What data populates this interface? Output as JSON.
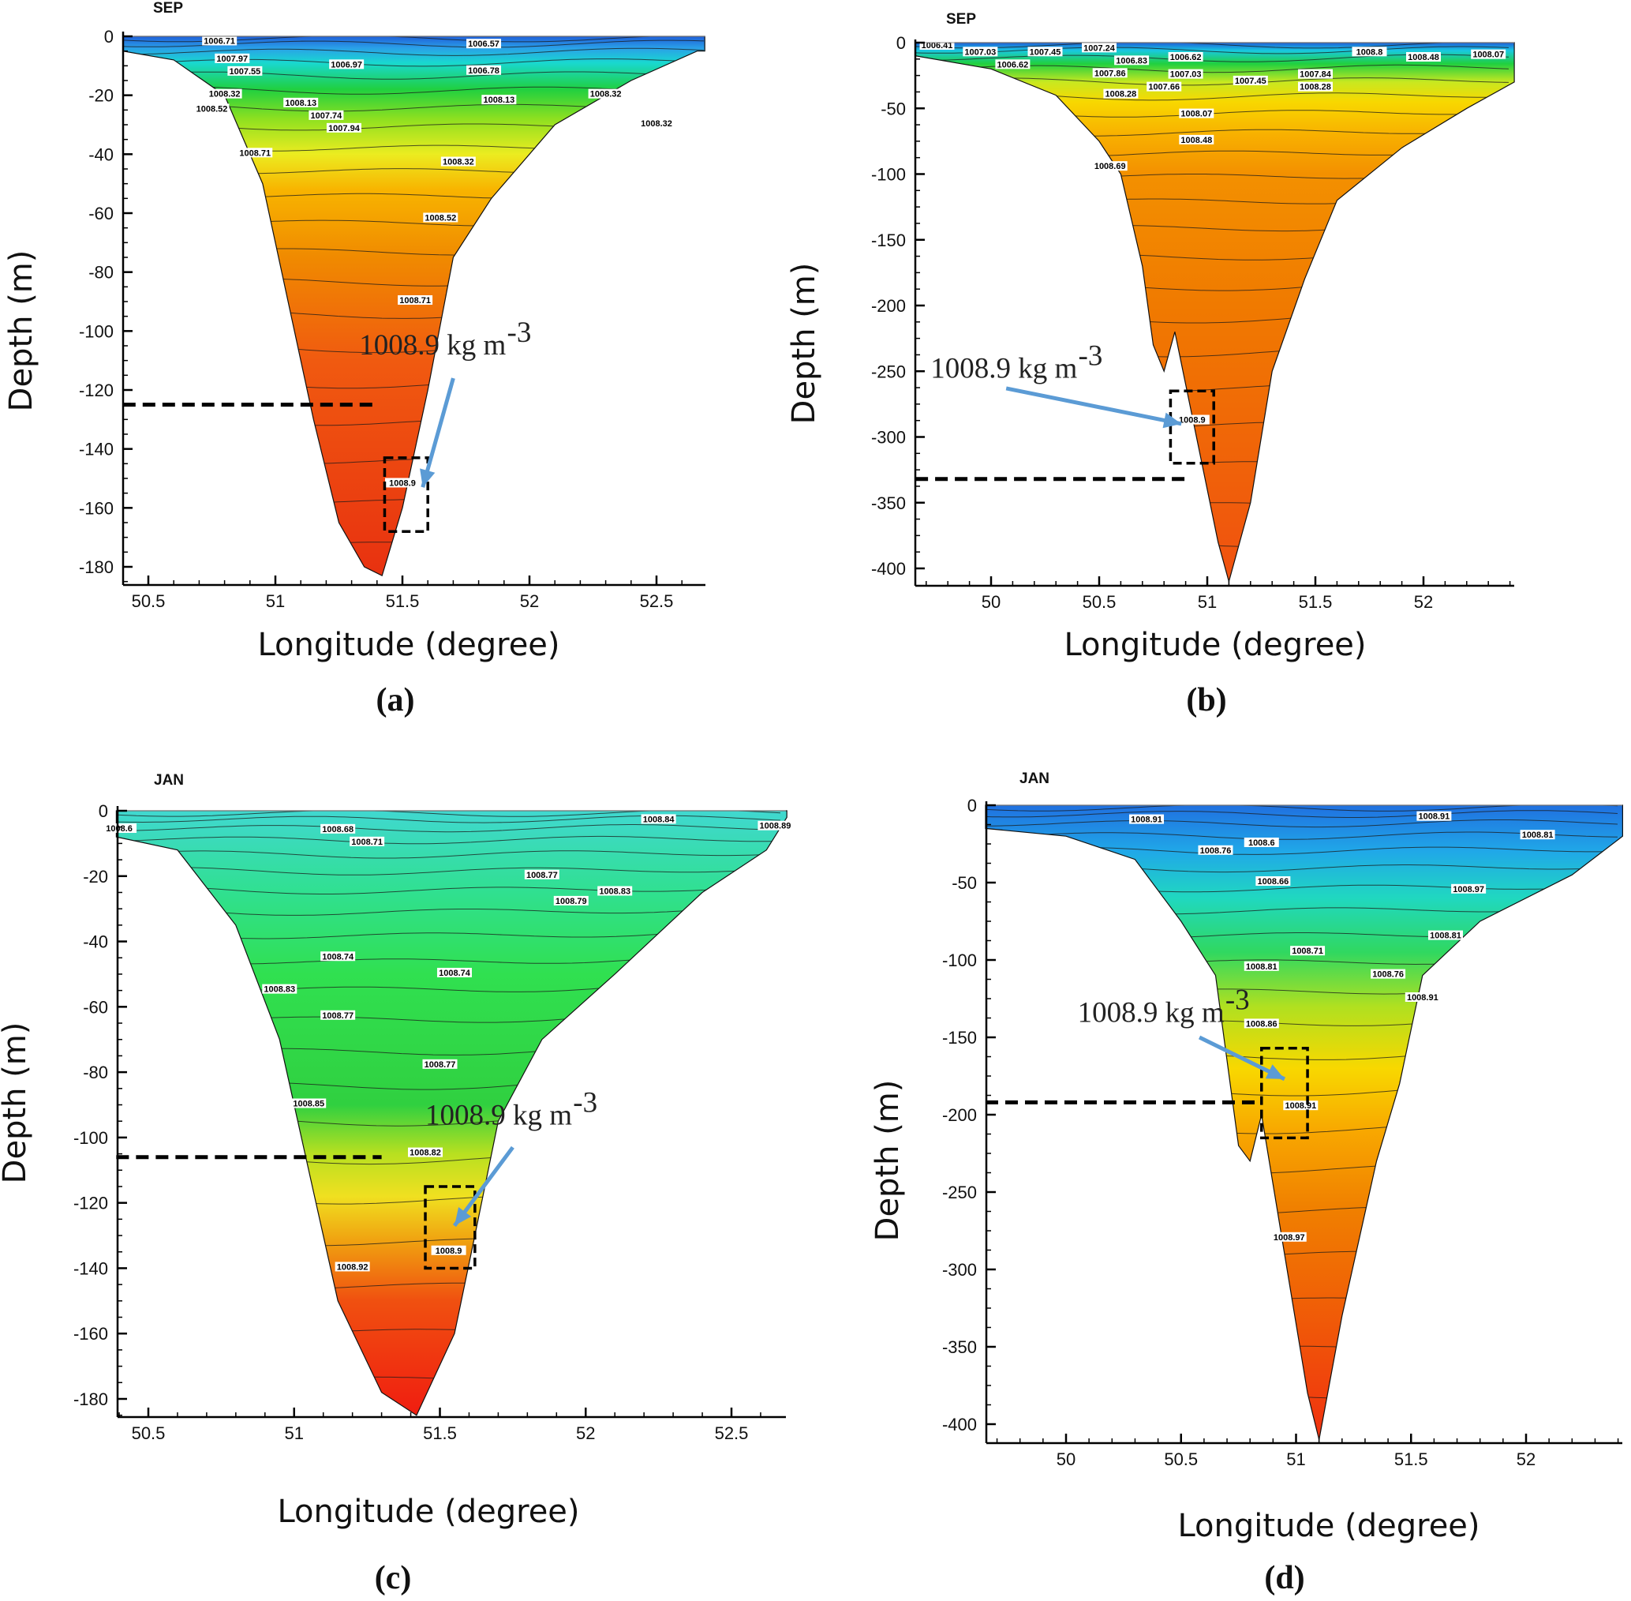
{
  "chart_data": [
    {
      "panel": "(a)",
      "type": "contour",
      "title": "SEP",
      "xlabel": "Longitude (degree)",
      "ylabel": "Depth (m)",
      "xlim": [
        50.4,
        52.69
      ],
      "ylim": [
        -185,
        0
      ],
      "xticks": [
        50.5,
        51,
        51.5,
        52,
        52.5
      ],
      "xtick_labels": [
        "50.5",
        "51",
        "51.5",
        "52",
        "52.5"
      ],
      "yticks": [
        0,
        -20,
        -40,
        -60,
        -80,
        -100,
        -120,
        -140,
        -160,
        -180
      ],
      "ytick_labels": [
        "0",
        "-20",
        "-40",
        "-60",
        "-80",
        "-100",
        "-120",
        "-140",
        "-160",
        "-180"
      ],
      "color_scale": [
        [
          0,
          "#1f5fd8"
        ],
        [
          -4,
          "#2aa0e8"
        ],
        [
          -9,
          "#19d8d0"
        ],
        [
          -18,
          "#20d040"
        ],
        [
          -28,
          "#8ee020"
        ],
        [
          -40,
          "#ecec20"
        ],
        [
          -52,
          "#f8b400"
        ],
        [
          -75,
          "#f08a00"
        ],
        [
          -110,
          "#f05a10"
        ],
        [
          -185,
          "#e83010"
        ]
      ],
      "bottom_profile": [
        [
          50.4,
          -5
        ],
        [
          50.6,
          -8
        ],
        [
          50.8,
          -20
        ],
        [
          50.95,
          -50
        ],
        [
          51.05,
          -90
        ],
        [
          51.15,
          -130
        ],
        [
          51.25,
          -165
        ],
        [
          51.35,
          -180
        ],
        [
          51.42,
          -183
        ],
        [
          51.5,
          -160
        ],
        [
          51.6,
          -120
        ],
        [
          51.7,
          -75
        ],
        [
          51.85,
          -55
        ],
        [
          52.1,
          -30
        ],
        [
          52.4,
          -15
        ],
        [
          52.66,
          -5
        ]
      ],
      "contour_labels": [
        {
          "text": "1006.71",
          "lon": 50.78,
          "depth": -2
        },
        {
          "text": "1007.97",
          "lon": 50.83,
          "depth": -8
        },
        {
          "text": "1007.55",
          "lon": 50.88,
          "depth": -10
        },
        {
          "text": "1006.97",
          "lon": 51.28,
          "depth": -10
        },
        {
          "text": "1006.57",
          "lon": 51.82,
          "depth": -3
        },
        {
          "text": "1006.78",
          "lon": 51.82,
          "depth": -12
        },
        {
          "text": "1008.32",
          "lon": 50.8,
          "depth": -20
        },
        {
          "text": "1008.52",
          "lon": 50.75,
          "depth": -25
        },
        {
          "text": "1008.13",
          "lon": 51.1,
          "depth": -23
        },
        {
          "text": "1007.74",
          "lon": 51.2,
          "depth": -20
        },
        {
          "text": "1007.94",
          "lon": 51.27,
          "depth": -26
        },
        {
          "text": "1008.13",
          "lon": 51.88,
          "depth": -22
        },
        {
          "text": "1008.32",
          "lon": 52.3,
          "depth": -20
        },
        {
          "text": "1008.32",
          "lon": 52.5,
          "depth": -30
        },
        {
          "text": "1008.71",
          "lon": 50.92,
          "depth": -40
        },
        {
          "text": "1008.32",
          "lon": 51.72,
          "depth": -43
        },
        {
          "text": "1008.52",
          "lon": 51.65,
          "depth": -62
        },
        {
          "text": "1008.71",
          "lon": 51.55,
          "depth": -90
        },
        {
          "text": "1008.9",
          "lon": 51.5,
          "depth": -152
        }
      ],
      "annotation": {
        "text": "1008.9 kg m",
        "superscript": "-3",
        "text_lon": 51.33,
        "text_depth": -108,
        "arrow_from": [
          51.7,
          -116
        ],
        "arrow_to": [
          51.58,
          -153
        ],
        "box_lon": [
          51.43,
          51.6
        ],
        "box_depth": [
          -143,
          -168
        ],
        "dashed_depth": -125,
        "dashed_lon": [
          50.4,
          51.4
        ]
      }
    },
    {
      "panel": "(b)",
      "type": "contour",
      "title": "SEP",
      "xlabel": "Longitude (degree)",
      "ylabel": "Depth (m)",
      "xlim": [
        49.65,
        52.42
      ],
      "ylim": [
        -412,
        0
      ],
      "xticks": [
        50,
        50.5,
        51,
        51.5,
        52
      ],
      "xtick_labels": [
        "50",
        "50.5",
        "51",
        "51.5",
        "52"
      ],
      "yticks": [
        0,
        -50,
        -100,
        -150,
        -200,
        -250,
        -300,
        -350,
        -400
      ],
      "ytick_labels": [
        "0",
        "-50",
        "-100",
        "-150",
        "-200",
        "-250",
        "-300",
        "-350",
        "-400"
      ],
      "color_scale": [
        [
          0,
          "#1f5fd8"
        ],
        [
          -6,
          "#19c8e0"
        ],
        [
          -16,
          "#20d040"
        ],
        [
          -30,
          "#c8e820"
        ],
        [
          -45,
          "#f8d800"
        ],
        [
          -70,
          "#f8b000"
        ],
        [
          -100,
          "#f39000"
        ],
        [
          -200,
          "#f07a00"
        ],
        [
          -412,
          "#f05010"
        ]
      ],
      "bottom_profile": [
        [
          49.65,
          -10
        ],
        [
          50,
          -20
        ],
        [
          50.3,
          -40
        ],
        [
          50.5,
          -75
        ],
        [
          50.6,
          -100
        ],
        [
          50.7,
          -170
        ],
        [
          50.75,
          -230
        ],
        [
          50.8,
          -250
        ],
        [
          50.85,
          -220
        ],
        [
          50.95,
          -300
        ],
        [
          51.05,
          -380
        ],
        [
          51.1,
          -410
        ],
        [
          51.2,
          -350
        ],
        [
          51.3,
          -250
        ],
        [
          51.45,
          -180
        ],
        [
          51.6,
          -120
        ],
        [
          51.9,
          -80
        ],
        [
          52.2,
          -50
        ],
        [
          52.42,
          -30
        ]
      ],
      "contour_labels": [
        {
          "text": "1006.41",
          "lon": 49.75,
          "depth": -3
        },
        {
          "text": "1007.03",
          "lon": 49.95,
          "depth": -8
        },
        {
          "text": "1006.62",
          "lon": 50.1,
          "depth": -3
        },
        {
          "text": "1007.45",
          "lon": 50.25,
          "depth": -8
        },
        {
          "text": "1007.24",
          "lon": 50.5,
          "depth": -5
        },
        {
          "text": "1006.83",
          "lon": 50.65,
          "depth": -5
        },
        {
          "text": "1006.62",
          "lon": 50.9,
          "depth": -12
        },
        {
          "text": "1007.03",
          "lon": 50.9,
          "depth": -25
        },
        {
          "text": "1007.86",
          "lon": 50.55,
          "depth": -18
        },
        {
          "text": "1007.66",
          "lon": 50.8,
          "depth": -28
        },
        {
          "text": "1007.45",
          "lon": 51.2,
          "depth": -30
        },
        {
          "text": "1008.28",
          "lon": 50.6,
          "depth": -40
        },
        {
          "text": "1008.07",
          "lon": 50.95,
          "depth": -55
        },
        {
          "text": "1008.48",
          "lon": 50.95,
          "depth": -75
        },
        {
          "text": "1008.69",
          "lon": 50.55,
          "depth": -95
        },
        {
          "text": "1008.8",
          "lon": 51.75,
          "depth": -8
        },
        {
          "text": "1008.48",
          "lon": 52.0,
          "depth": -12
        },
        {
          "text": "1008.07",
          "lon": 52.3,
          "depth": -10
        },
        {
          "text": "1007.84",
          "lon": 51.5,
          "depth": -25
        },
        {
          "text": "1008.28",
          "lon": 51.5,
          "depth": -33
        },
        {
          "text": "1008.9",
          "lon": 50.93,
          "depth": -288
        }
      ],
      "annotation": {
        "text": "1008.9 kg m",
        "superscript": "-3",
        "text_lon": 49.72,
        "text_depth": -255,
        "arrow_from": [
          50.07,
          -263
        ],
        "arrow_to": [
          50.88,
          -290
        ],
        "box_lon": [
          50.83,
          51.03
        ],
        "box_depth": [
          -265,
          -320
        ],
        "dashed_depth": -332,
        "dashed_lon": [
          49.65,
          50.9
        ]
      }
    },
    {
      "panel": "(c)",
      "type": "contour",
      "title": "JAN",
      "xlabel": "Longitude (degree)",
      "ylabel": "Depth (m)",
      "xlim": [
        50.39,
        52.69
      ],
      "ylim": [
        -187,
        0
      ],
      "xticks": [
        50.5,
        51,
        51.5,
        52,
        52.5
      ],
      "xtick_labels": [
        "50.5",
        "51",
        "51.5",
        "52",
        "52.5"
      ],
      "yticks": [
        0,
        -20,
        -40,
        -60,
        -80,
        -100,
        -120,
        -140,
        -160,
        -180
      ],
      "ytick_labels": [
        "0",
        "-20",
        "-40",
        "-60",
        "-80",
        "-100",
        "-120",
        "-140",
        "-160",
        "-180"
      ],
      "color_scale": [
        [
          0,
          "#40d8d0"
        ],
        [
          -25,
          "#30e090"
        ],
        [
          -50,
          "#30e050"
        ],
        [
          -90,
          "#30d040"
        ],
        [
          -105,
          "#b8e020"
        ],
        [
          -118,
          "#f0e020"
        ],
        [
          -132,
          "#f0a010"
        ],
        [
          -150,
          "#f05010"
        ],
        [
          -187,
          "#f01a10"
        ]
      ],
      "bottom_profile": [
        [
          50.39,
          -8
        ],
        [
          50.6,
          -12
        ],
        [
          50.8,
          -35
        ],
        [
          50.95,
          -70
        ],
        [
          51.05,
          -110
        ],
        [
          51.15,
          -150
        ],
        [
          51.3,
          -178
        ],
        [
          51.42,
          -185
        ],
        [
          51.55,
          -160
        ],
        [
          51.62,
          -130
        ],
        [
          51.7,
          -95
        ],
        [
          51.85,
          -70
        ],
        [
          52.1,
          -50
        ],
        [
          52.4,
          -25
        ],
        [
          52.62,
          -12
        ],
        [
          52.69,
          -2
        ]
      ],
      "contour_labels": [
        {
          "text": "1008.6",
          "lon": 50.4,
          "depth": -3
        },
        {
          "text": "1008.68",
          "lon": 51.15,
          "depth": -6
        },
        {
          "text": "1008.71",
          "lon": 51.25,
          "depth": -6
        },
        {
          "text": "1008.74",
          "lon": 51.15,
          "depth": -45
        },
        {
          "text": "1008.74",
          "lon": 51.55,
          "depth": -50
        },
        {
          "text": "1008.77",
          "lon": 51.15,
          "depth": -63
        },
        {
          "text": "1008.77",
          "lon": 51.5,
          "depth": -78
        },
        {
          "text": "1008.77",
          "lon": 51.85,
          "depth": -20
        },
        {
          "text": "1008.79",
          "lon": 51.95,
          "depth": -28
        },
        {
          "text": "1008.83",
          "lon": 52.1,
          "depth": -25
        },
        {
          "text": "1008.84",
          "lon": 52.25,
          "depth": -3
        },
        {
          "text": "1008.89",
          "lon": 52.65,
          "depth": -5
        },
        {
          "text": "1008.83",
          "lon": 50.95,
          "depth": -55
        },
        {
          "text": "1008.82",
          "lon": 51.45,
          "depth": -105
        },
        {
          "text": "1008.85",
          "lon": 51.05,
          "depth": -90
        },
        {
          "text": "1008.92",
          "lon": 51.2,
          "depth": -140
        },
        {
          "text": "1008.9",
          "lon": 51.53,
          "depth": -135
        }
      ],
      "annotation": {
        "text": "1008.9 kg m",
        "superscript": "-3",
        "text_lon": 51.45,
        "text_depth": -96,
        "arrow_from": [
          51.75,
          -103
        ],
        "arrow_to": [
          51.55,
          -127
        ],
        "box_lon": [
          51.45,
          51.62
        ],
        "box_depth": [
          -115,
          -140
        ],
        "dashed_depth": -106,
        "dashed_lon": [
          50.39,
          51.3
        ]
      }
    },
    {
      "panel": "(d)",
      "type": "contour",
      "title": "JAN",
      "xlabel": "Longitude (degree)",
      "ylabel": "Depth (m)",
      "xlim": [
        49.65,
        52.42
      ],
      "ylim": [
        -412,
        0
      ],
      "xticks": [
        50,
        50.5,
        51,
        51.5,
        52
      ],
      "xtick_labels": [
        "50",
        "50.5",
        "51",
        "51.5",
        "52"
      ],
      "yticks": [
        0,
        -50,
        -100,
        -150,
        -200,
        -250,
        -300,
        -350,
        -400
      ],
      "ytick_labels": [
        "0",
        "-50",
        "-100",
        "-150",
        "-200",
        "-250",
        "-300",
        "-350",
        "-400"
      ],
      "color_scale": [
        [
          0,
          "#2070e0"
        ],
        [
          -30,
          "#20a8e8"
        ],
        [
          -60,
          "#20d8c0"
        ],
        [
          -95,
          "#30d860"
        ],
        [
          -130,
          "#b0e020"
        ],
        [
          -170,
          "#f8d800"
        ],
        [
          -210,
          "#f8a800"
        ],
        [
          -260,
          "#f08000"
        ],
        [
          -412,
          "#f03010"
        ]
      ],
      "bottom_profile": [
        [
          49.65,
          -15
        ],
        [
          50,
          -20
        ],
        [
          50.3,
          -35
        ],
        [
          50.5,
          -75
        ],
        [
          50.65,
          -110
        ],
        [
          50.75,
          -220
        ],
        [
          50.8,
          -230
        ],
        [
          50.85,
          -200
        ],
        [
          50.95,
          -290
        ],
        [
          51.05,
          -380
        ],
        [
          51.1,
          -410
        ],
        [
          51.2,
          -330
        ],
        [
          51.35,
          -230
        ],
        [
          51.45,
          -180
        ],
        [
          51.55,
          -110
        ],
        [
          51.8,
          -75
        ],
        [
          52.2,
          -45
        ],
        [
          52.42,
          -20
        ]
      ],
      "contour_labels": [
        {
          "text": "1008.91",
          "lon": 50.35,
          "depth": -10
        },
        {
          "text": "1008.76",
          "lon": 50.65,
          "depth": -30
        },
        {
          "text": "1008.6",
          "lon": 50.85,
          "depth": -25
        },
        {
          "text": "1008.66",
          "lon": 50.9,
          "depth": -50
        },
        {
          "text": "1008.71",
          "lon": 51.05,
          "depth": -95
        },
        {
          "text": "1008.81",
          "lon": 50.85,
          "depth": -105
        },
        {
          "text": "1008.86",
          "lon": 50.85,
          "depth": -130
        },
        {
          "text": "1008.76",
          "lon": 51.4,
          "depth": -110
        },
        {
          "text": "1008.91",
          "lon": 51.6,
          "depth": -8
        },
        {
          "text": "1008.81",
          "lon": 52.05,
          "depth": -20
        },
        {
          "text": "1008.97",
          "lon": 51.75,
          "depth": -55
        },
        {
          "text": "1008.81",
          "lon": 51.65,
          "depth": -85
        },
        {
          "text": "1008.91",
          "lon": 51.55,
          "depth": -125
        },
        {
          "text": "1008.91",
          "lon": 51.02,
          "depth": -195
        },
        {
          "text": "1008.97",
          "lon": 50.97,
          "depth": -280
        }
      ],
      "annotation": {
        "text": "1008.9 kg m",
        "superscript": "-3",
        "text_lon": 50.05,
        "text_depth": -140,
        "arrow_from": [
          50.58,
          -150
        ],
        "arrow_to": [
          50.95,
          -177
        ],
        "box_lon": [
          50.85,
          51.05
        ],
        "box_depth": [
          -157,
          -215
        ],
        "dashed_depth": -192,
        "dashed_lon": [
          49.65,
          50.85
        ]
      }
    }
  ]
}
